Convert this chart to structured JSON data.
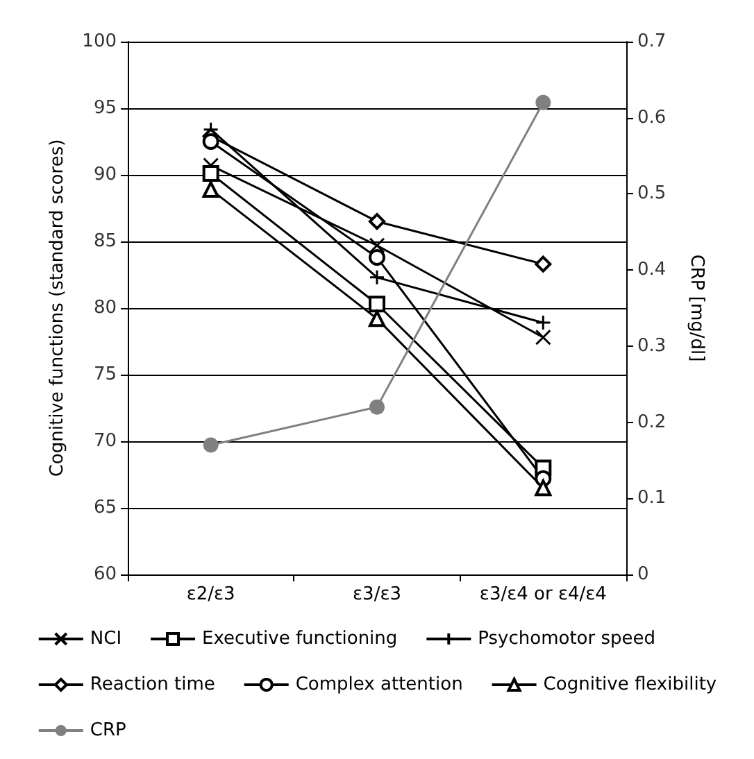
{
  "chart_data": {
    "type": "line",
    "ylabel": "Cognitive functions (standard scores)",
    "y2label": "CRP [mg/dl]",
    "categories": [
      "ε2/ε3",
      "ε3/ε3",
      "ε3/ε4 or ε4/ε4"
    ],
    "series": [
      {
        "name": "NCI",
        "color": "#000000",
        "marker": "cross",
        "values": [
          90.7,
          84.7,
          77.8
        ]
      },
      {
        "name": "Executive functioning",
        "color": "#000000",
        "marker": "square",
        "values": [
          90.1,
          80.3,
          68.0
        ]
      },
      {
        "name": "Psychomotor speed",
        "color": "#000000",
        "marker": "plus",
        "values": [
          93.4,
          82.3,
          78.9
        ]
      },
      {
        "name": "Reaction time",
        "color": "#000000",
        "marker": "diamond",
        "values": [
          92.9,
          86.5,
          83.3
        ]
      },
      {
        "name": "Complex attention",
        "color": "#000000",
        "marker": "circle",
        "values": [
          92.5,
          83.8,
          67.2
        ]
      },
      {
        "name": "Cognitive flexibility",
        "color": "#000000",
        "marker": "triangle",
        "values": [
          88.9,
          79.2,
          66.5
        ]
      },
      {
        "name": "CRP",
        "color": "#808080",
        "marker": "filled-circle",
        "axis": "y2",
        "values": [
          0.17,
          0.22,
          0.62
        ]
      }
    ],
    "ylim": [
      60,
      100
    ],
    "yticks": [
      60,
      65,
      70,
      75,
      80,
      85,
      90,
      95,
      100
    ],
    "y2lim": [
      0,
      0.7
    ],
    "y2ticks": [
      0,
      0.1,
      0.2,
      0.3,
      0.4,
      0.5,
      0.6,
      0.7
    ],
    "grid": "y",
    "legend": "bottom",
    "line_style": "solid"
  }
}
